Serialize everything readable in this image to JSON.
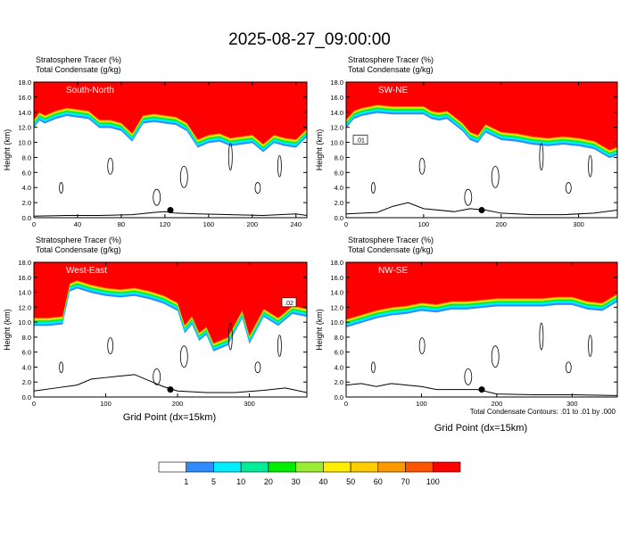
{
  "title": "2025-08-27_09:00:00",
  "colors": {
    "tracer_levels": [
      "#ffffff",
      "#2f8cff",
      "#00eeff",
      "#00ee99",
      "#00ee00",
      "#99ee33",
      "#ffee00",
      "#ffcc00",
      "#ff9900",
      "#ff5500",
      "#ff0000"
    ],
    "contour": "#000000",
    "terrain": "#000000"
  },
  "chart_data": [
    {
      "type": "area",
      "panel_label": "South-North",
      "header": [
        "Stratosphere Tracer   (%)",
        "Total Condensate   (g/kg)"
      ],
      "ylabel": "Height (km)",
      "xlabel": "",
      "xlim": [
        0,
        250
      ],
      "xticks": [
        0,
        40,
        80,
        120,
        160,
        200,
        240
      ],
      "ylim": [
        0,
        18
      ],
      "yticks": [
        "0.0",
        "2.0",
        "4.0",
        "6.0",
        "8.0",
        "10.0",
        "12.0",
        "14.0",
        "16.0",
        "18.0"
      ],
      "tropopause_km": {
        "x": [
          0,
          5,
          10,
          20,
          30,
          40,
          50,
          60,
          70,
          80,
          90,
          100,
          110,
          120,
          130,
          140,
          150,
          160,
          170,
          180,
          190,
          200,
          210,
          220,
          230,
          240,
          250
        ],
        "y": [
          13.0,
          14.0,
          13.6,
          14.2,
          14.6,
          14.4,
          14.2,
          13.0,
          13.0,
          12.6,
          11.2,
          13.6,
          13.8,
          13.6,
          13.4,
          12.6,
          10.4,
          11.0,
          11.2,
          10.6,
          10.8,
          11.0,
          9.8,
          11.0,
          10.6,
          10.4,
          11.8
        ]
      },
      "terrain_km": {
        "x": [
          0,
          30,
          60,
          90,
          110,
          120,
          130,
          150,
          180,
          210,
          240,
          250
        ],
        "y": [
          0.2,
          0.3,
          0.3,
          0.4,
          0.7,
          0.8,
          0.6,
          0.5,
          0.4,
          0.3,
          0.5,
          0.3
        ]
      },
      "marker": {
        "x": 125,
        "y": 1.0
      }
    },
    {
      "type": "area",
      "panel_label": "SW-NE",
      "header": [
        "Stratosphere Tracer   (%)",
        "Total Condensate   (g/kg)"
      ],
      "ylabel": "Height (km)",
      "xlabel": "",
      "xlim": [
        0,
        350
      ],
      "xticks": [
        0,
        100,
        200,
        300
      ],
      "ylim": [
        0,
        18
      ],
      "yticks": [
        "0.0",
        "2.0",
        "4.0",
        "6.0",
        "8.0",
        "10.0",
        "12.0",
        "14.0",
        "16.0",
        "18.0"
      ],
      "contour_label": ".01",
      "tropopause_km": {
        "x": [
          0,
          10,
          20,
          40,
          60,
          80,
          100,
          110,
          120,
          130,
          150,
          160,
          170,
          180,
          200,
          220,
          240,
          260,
          280,
          300,
          320,
          330,
          340,
          350
        ],
        "y": [
          13.0,
          14.2,
          14.6,
          15.0,
          14.8,
          14.8,
          14.8,
          14.2,
          14.0,
          14.2,
          12.6,
          11.4,
          11.0,
          12.4,
          11.4,
          11.2,
          10.8,
          10.6,
          10.8,
          10.6,
          10.2,
          9.6,
          9.0,
          9.4
        ]
      },
      "terrain_km": {
        "x": [
          0,
          40,
          60,
          80,
          100,
          140,
          160,
          180,
          200,
          240,
          280,
          320,
          350
        ],
        "y": [
          0.5,
          0.7,
          1.5,
          2.0,
          1.2,
          0.8,
          1.2,
          1.0,
          0.6,
          0.4,
          0.4,
          0.6,
          1.0
        ]
      },
      "marker": {
        "x": 175,
        "y": 1.0
      }
    },
    {
      "type": "area",
      "panel_label": "West-East",
      "header": [
        "Stratosphere Tracer   (%)",
        "Total Condensate   (g/kg)"
      ],
      "ylabel": "Height (km)",
      "xlabel": "",
      "xlim": [
        0,
        380
      ],
      "xticks": [
        0,
        100,
        200,
        300
      ],
      "ylim": [
        0,
        18
      ],
      "yticks": [
        "0.0",
        "2.0",
        "4.0",
        "6.0",
        "8.0",
        "10.0",
        "12.0",
        "14.0",
        "16.0",
        "18.0"
      ],
      "contour_label": ".02",
      "tropopause_km": {
        "x": [
          0,
          20,
          40,
          50,
          60,
          80,
          100,
          120,
          140,
          160,
          180,
          200,
          210,
          220,
          230,
          240,
          250,
          270,
          290,
          300,
          320,
          340,
          360,
          380
        ],
        "y": [
          10.6,
          10.6,
          10.8,
          15.2,
          15.6,
          15.0,
          14.6,
          14.4,
          14.6,
          14.2,
          13.6,
          12.6,
          9.6,
          10.8,
          8.6,
          9.4,
          7.2,
          8.0,
          11.6,
          8.2,
          11.8,
          10.6,
          12.2,
          11.8
        ]
      },
      "terrain_km": {
        "x": [
          0,
          30,
          60,
          80,
          100,
          120,
          140,
          160,
          180,
          200,
          240,
          280,
          320,
          350,
          380
        ],
        "y": [
          0.8,
          1.2,
          1.6,
          2.4,
          2.6,
          2.8,
          3.0,
          2.2,
          1.4,
          0.8,
          0.6,
          0.6,
          0.9,
          1.2,
          0.6
        ]
      },
      "marker": {
        "x": 190,
        "y": 1.0
      }
    },
    {
      "type": "area",
      "panel_label": "NW-SE",
      "header": [
        "Stratosphere Tracer   (%)",
        "Total Condensate   (g/kg)"
      ],
      "ylabel": "Height (km)",
      "xlabel": "",
      "xlim": [
        0,
        360
      ],
      "xticks": [
        0,
        100,
        200,
        300
      ],
      "ylim": [
        0,
        18
      ],
      "yticks": [
        "0.0",
        "2.0",
        "4.0",
        "6.0",
        "8.0",
        "10.0",
        "12.0",
        "14.0",
        "16.0",
        "18.0"
      ],
      "tropopause_km": {
        "x": [
          0,
          20,
          40,
          60,
          80,
          100,
          120,
          140,
          160,
          180,
          200,
          220,
          240,
          260,
          280,
          300,
          320,
          340,
          360
        ],
        "y": [
          10.4,
          11.0,
          11.6,
          12.0,
          12.2,
          12.6,
          12.4,
          12.8,
          12.8,
          13.0,
          13.2,
          13.2,
          13.2,
          13.2,
          13.4,
          13.4,
          12.8,
          12.6,
          13.8
        ]
      },
      "terrain_km": {
        "x": [
          0,
          20,
          40,
          60,
          80,
          100,
          120,
          150,
          175,
          200,
          250,
          300,
          360
        ],
        "y": [
          1.6,
          1.8,
          1.4,
          1.8,
          1.6,
          1.4,
          1.0,
          1.0,
          1.0,
          0.4,
          0.3,
          0.3,
          0.2
        ]
      },
      "marker": {
        "x": 180,
        "y": 1.0
      }
    }
  ],
  "shared_xlabel": "Grid Point (dx=15km)",
  "note": "Total Condensate Contours: .01 to .01 by .000",
  "colorbar": {
    "labels": [
      "1",
      "5",
      "10",
      "20",
      "30",
      "40",
      "50",
      "60",
      "70",
      "100"
    ]
  }
}
